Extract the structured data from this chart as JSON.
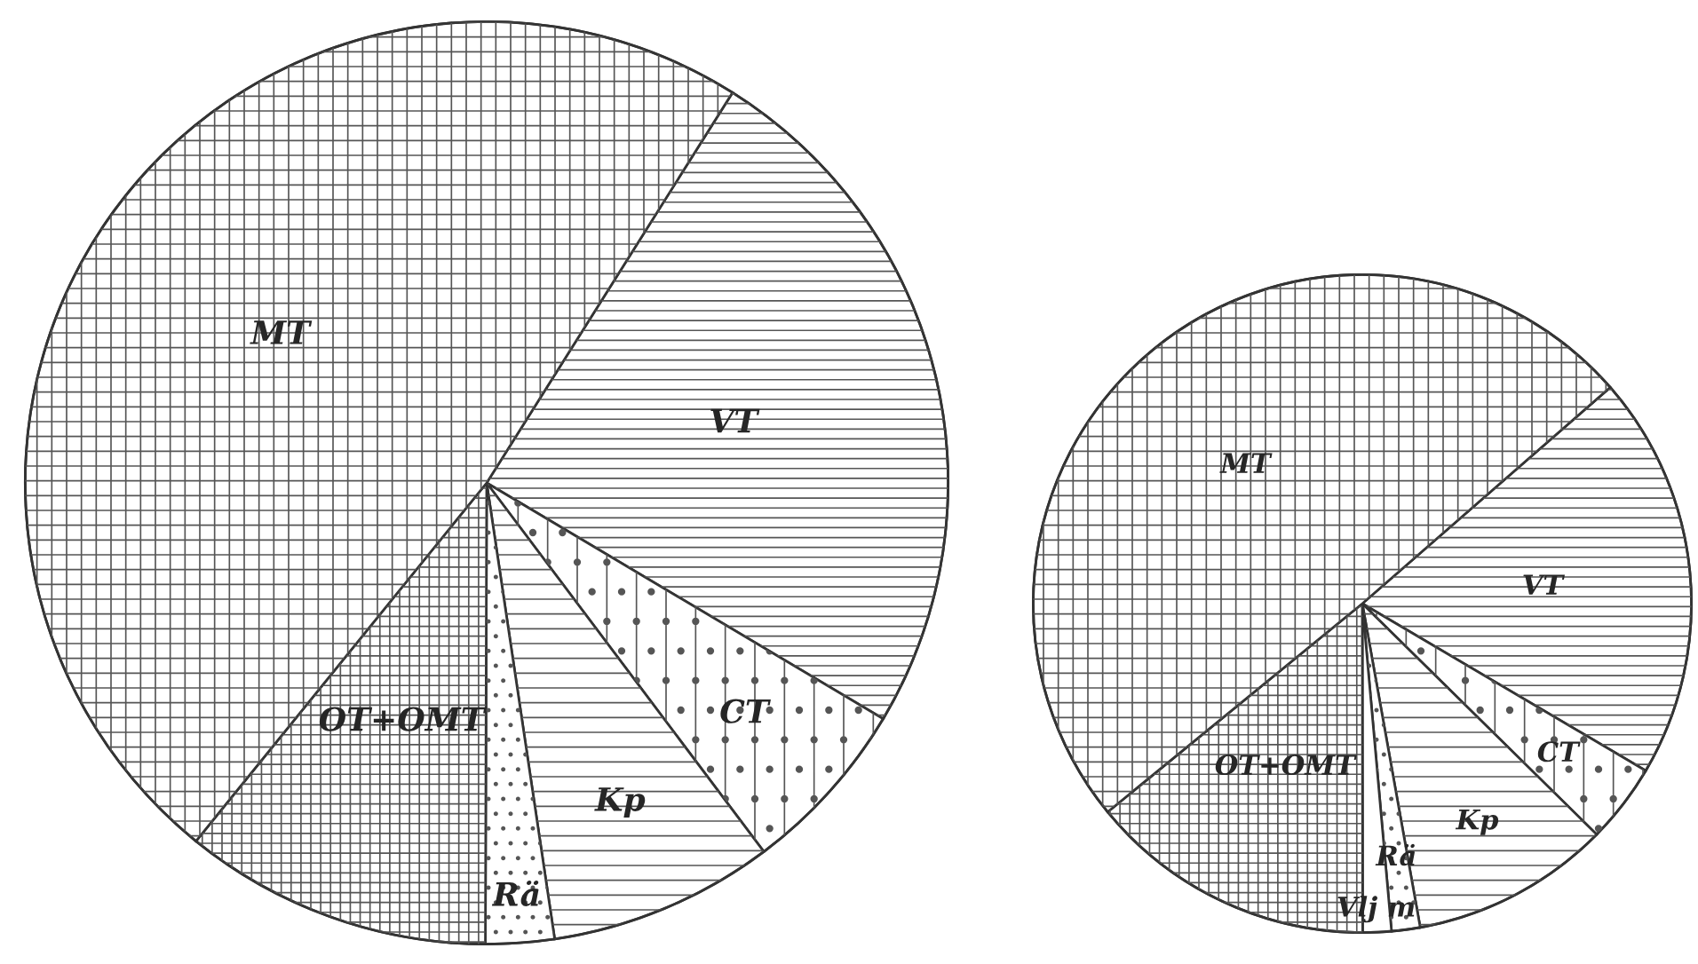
{
  "chart_data": [
    {
      "type": "pie",
      "categories": [
        "VT",
        "CT",
        "Kp",
        "Rä",
        "OT+OMT",
        "MT"
      ],
      "values": [
        24.6,
        6.2,
        7.9,
        2.4,
        10.8,
        48.1
      ],
      "colors": [
        "#ffffff",
        "#ffffff",
        "#ffffff",
        "#ffffff",
        "#ffffff",
        "#ffffff"
      ]
    },
    {
      "type": "pie",
      "categories": [
        "VT",
        "CT",
        "Kp",
        "Rä",
        "Vlj m",
        "OT+OMT",
        "MT"
      ],
      "values": [
        19.9,
        3.9,
        9.8,
        1.4,
        1.4,
        14.1,
        49.5
      ],
      "colors": [
        "#ffffff",
        "#ffffff",
        "#ffffff",
        "#ffffff",
        "#ffffff",
        "#ffffff",
        "#ffffff"
      ]
    }
  ]
}
